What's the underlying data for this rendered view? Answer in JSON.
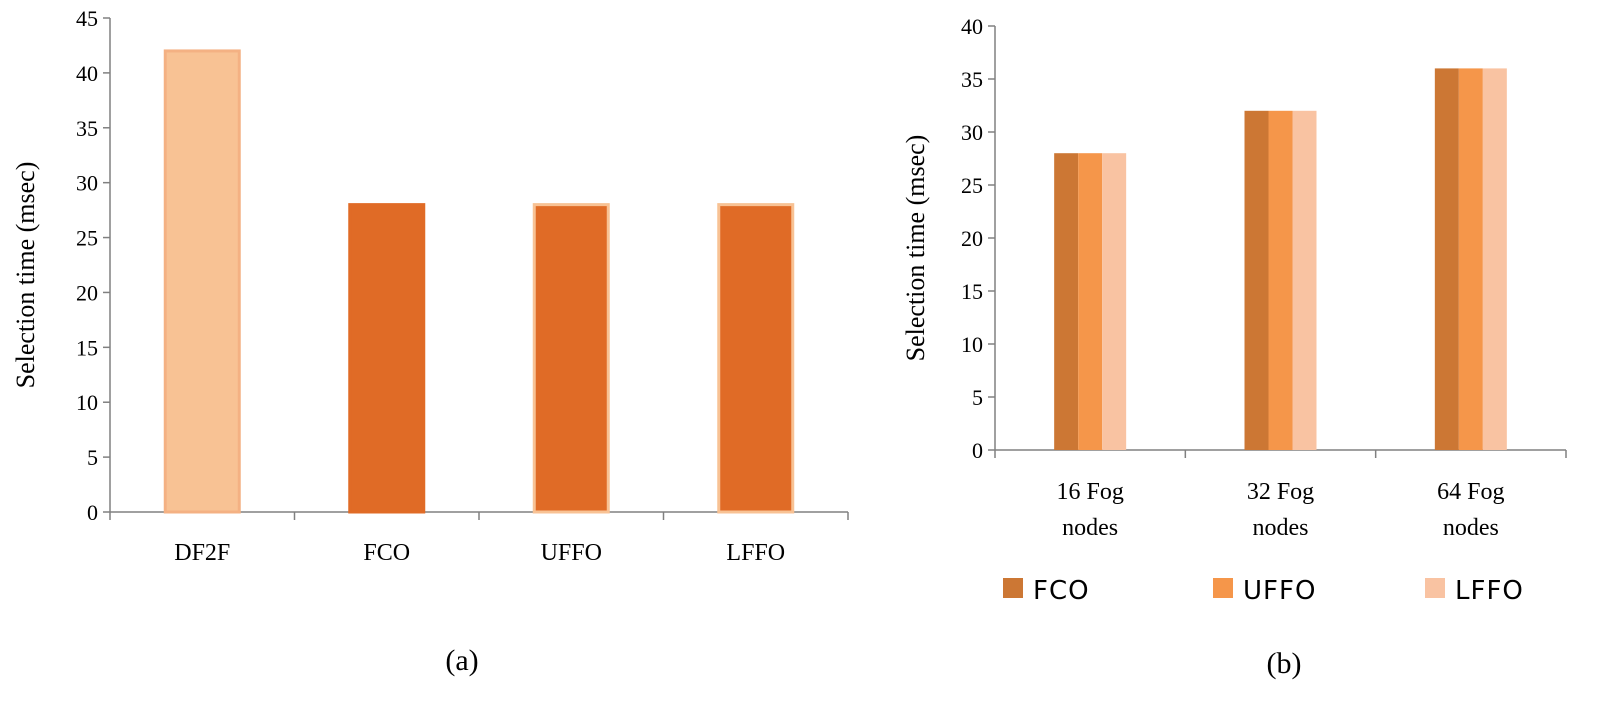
{
  "chart_data": [
    {
      "type": "bar",
      "panel_label": "(a)",
      "ylabel": "Selection time (msec)",
      "xlabel": "",
      "ylim": [
        0,
        45
      ],
      "yticks": [
        0,
        5,
        10,
        15,
        20,
        25,
        30,
        35,
        40,
        45
      ],
      "categories": [
        "DF2F",
        "FCO",
        "UFFO",
        "LFFO"
      ],
      "values": [
        42,
        28,
        28,
        28
      ],
      "bar_colors": [
        "#f8c294",
        "#e06b26",
        "#e06b26",
        "#e06b26"
      ],
      "bar_outline_colors": [
        "#f4b183",
        "#e06b26",
        "#f8c294",
        "#f8c294"
      ],
      "grid": false
    },
    {
      "type": "bar",
      "panel_label": "(b)",
      "ylabel": "Selection time (msec)",
      "xlabel": "",
      "ylim": [
        0,
        40
      ],
      "yticks": [
        0,
        5,
        10,
        15,
        20,
        25,
        30,
        35,
        40
      ],
      "categories": [
        [
          "16 Fog",
          "nodes"
        ],
        [
          "32 Fog",
          "nodes"
        ],
        [
          "64 Fog",
          "nodes"
        ]
      ],
      "series": [
        {
          "name": "FCO",
          "color": "#cc7734",
          "values": [
            28,
            32,
            36
          ]
        },
        {
          "name": "UFFO",
          "color": "#f5964a",
          "values": [
            28,
            32,
            36
          ]
        },
        {
          "name": "LFFO",
          "color": "#f9c3a2",
          "values": [
            28,
            32,
            36
          ]
        }
      ],
      "legend_position": "bottom",
      "grid": false
    }
  ]
}
